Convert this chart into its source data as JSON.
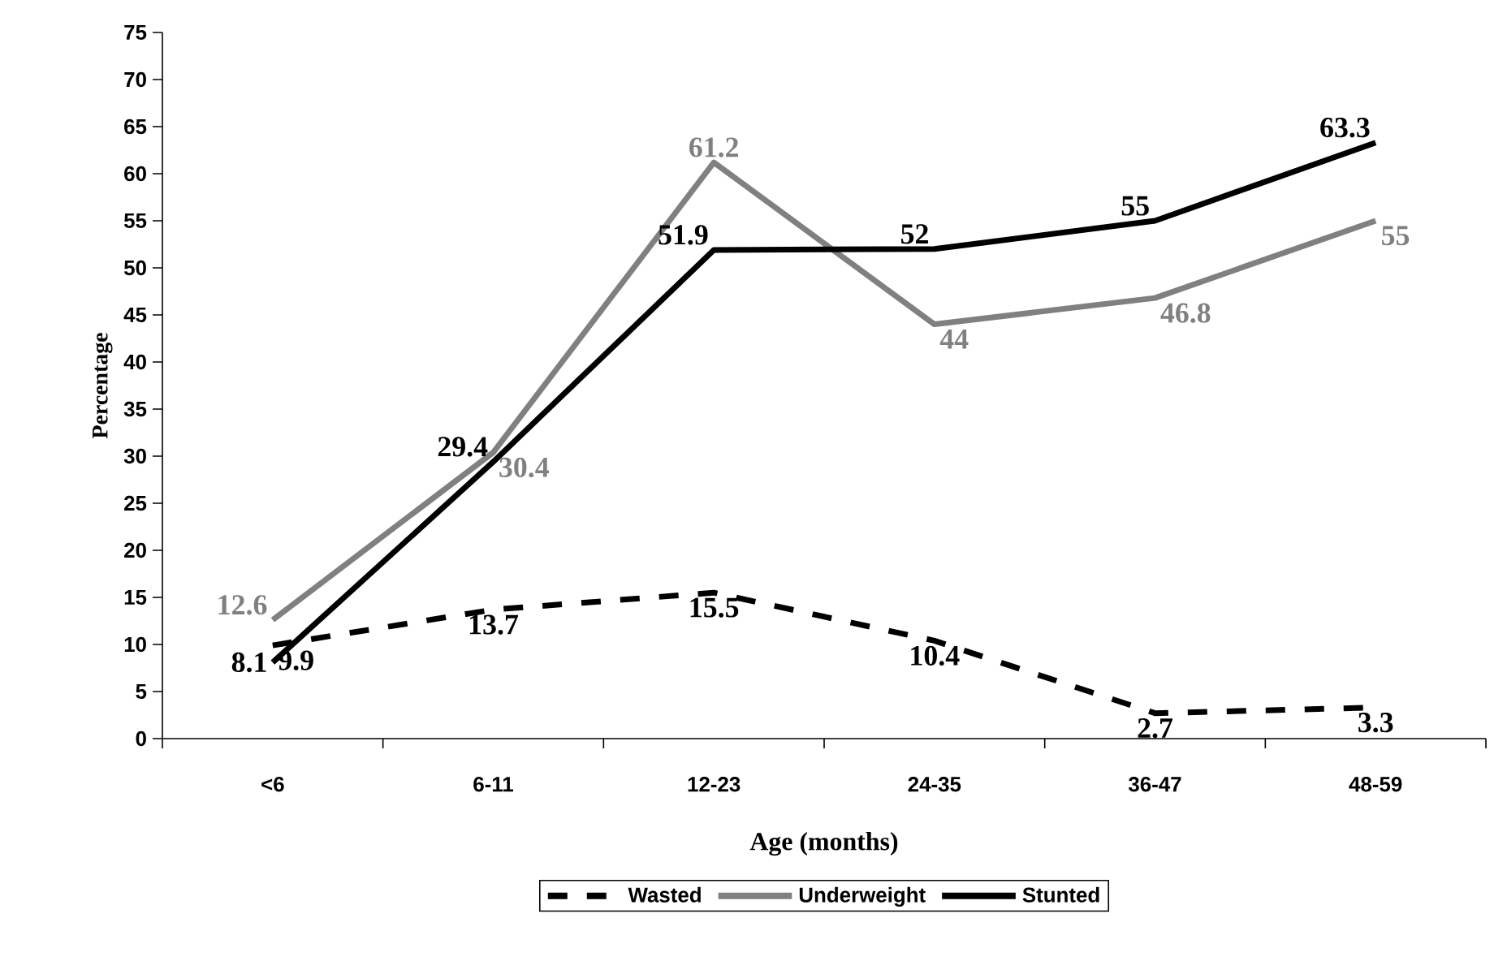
{
  "chart_data": {
    "type": "line",
    "xlabel": "Age (months)",
    "ylabel": "Percentage",
    "categories": [
      "<6",
      "6-11",
      "12-23",
      "24-35",
      "36-47",
      "48-59"
    ],
    "ylim": [
      0,
      75
    ],
    "yticks": [
      0,
      5,
      10,
      15,
      20,
      25,
      30,
      35,
      40,
      45,
      50,
      55,
      60,
      65,
      70,
      75
    ],
    "legend": "bottom",
    "marker": "none",
    "grid": false,
    "series": [
      {
        "name": "Wasted",
        "color": "#000000",
        "line_style": "dashed",
        "values": [
          9.9,
          13.7,
          15.5,
          10.4,
          2.7,
          3.3
        ],
        "value_labels": [
          "9.9",
          "13.7",
          "15.5",
          "10.4",
          "2.7",
          "3.3"
        ]
      },
      {
        "name": "Underweight",
        "color": "#808080",
        "line_style": "solid",
        "values": [
          12.6,
          30.4,
          61.2,
          44,
          46.8,
          55
        ],
        "value_labels": [
          "12.6",
          "30.4",
          "61.2",
          "44",
          "46.8",
          "55"
        ]
      },
      {
        "name": "Stunted",
        "color": "#000000",
        "line_style": "solid",
        "values": [
          8.1,
          29.4,
          51.9,
          52,
          55,
          63.3
        ],
        "value_labels": [
          "8.1",
          "29.4",
          "51.9",
          "52",
          "55",
          "63.3"
        ]
      }
    ]
  }
}
